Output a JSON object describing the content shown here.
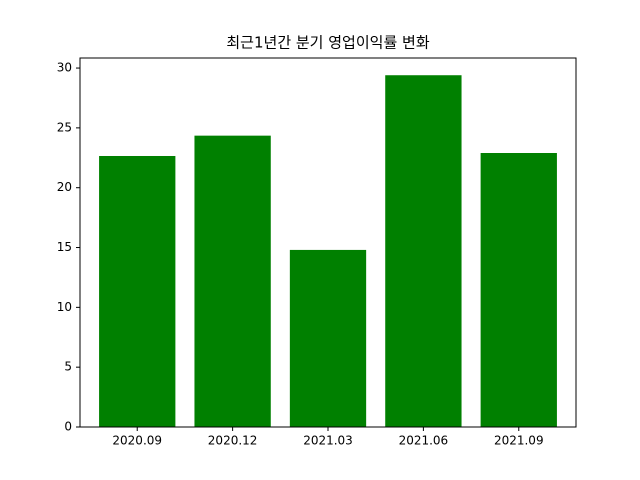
{
  "chart_data": {
    "type": "bar",
    "title": "최근1년간 분기 영업이익률 변화",
    "categories": [
      "2020.09",
      "2020.12",
      "2021.03",
      "2021.06",
      "2021.09"
    ],
    "values": [
      22.65,
      24.35,
      14.8,
      29.4,
      22.9
    ],
    "color": "#008000",
    "ylim": [
      0,
      30.84
    ],
    "yticks": [
      0,
      5,
      10,
      15,
      20,
      25,
      30
    ],
    "grid": false
  }
}
